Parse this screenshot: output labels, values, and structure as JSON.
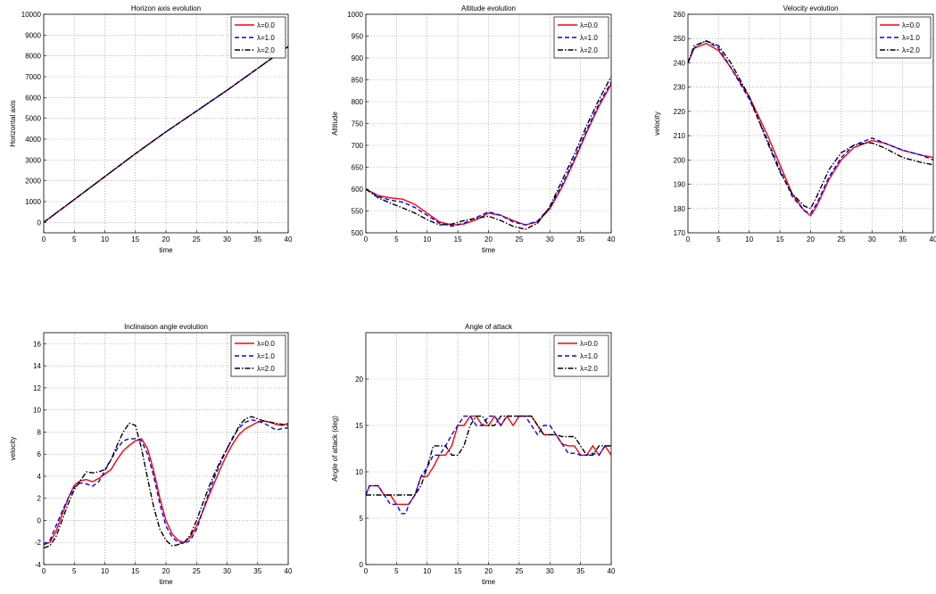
{
  "figure": {
    "background": "#ffffff",
    "series_colors": {
      "λ=0.0": "#ff0000",
      "λ=1.0": "#0000ff",
      "λ=2.0": "#000000"
    }
  },
  "chart_data": [
    {
      "type": "line",
      "title": "Horizon axis evolution",
      "xlabel": "time",
      "ylabel": "Horizontal axis",
      "xlim": [
        0,
        40
      ],
      "ylim": [
        -500,
        10000
      ],
      "xticks": [
        0,
        5,
        10,
        15,
        20,
        25,
        30,
        35,
        40
      ],
      "yticks": [
        0,
        1000,
        2000,
        3000,
        4000,
        5000,
        6000,
        7000,
        8000,
        9000,
        10000
      ],
      "grid": true,
      "legend_position": "top-right",
      "legend": [
        "λ=0.0",
        "λ=1.0",
        "λ=2.0"
      ],
      "series": [
        {
          "name": "λ=0.0",
          "color": "#ff0000",
          "style": "solid",
          "x": [
            0,
            5,
            10,
            15,
            20,
            25,
            30,
            35,
            40
          ],
          "y": [
            0,
            1100,
            2200,
            3300,
            4350,
            5350,
            6350,
            7400,
            8450
          ]
        },
        {
          "name": "λ=1.0",
          "color": "#0000ff",
          "style": "dashed",
          "x": [
            0,
            5,
            10,
            15,
            20,
            25,
            30,
            35,
            40
          ],
          "y": [
            0,
            1100,
            2200,
            3300,
            4350,
            5350,
            6350,
            7400,
            8450
          ]
        },
        {
          "name": "λ=2.0",
          "color": "#000000",
          "style": "dashdot",
          "x": [
            0,
            5,
            10,
            15,
            20,
            25,
            30,
            35,
            40
          ],
          "y": [
            0,
            1100,
            2200,
            3300,
            4350,
            5350,
            6350,
            7400,
            8450
          ]
        }
      ]
    },
    {
      "type": "line",
      "title": "Altitude evolution",
      "xlabel": "time",
      "ylabel": "Altitude",
      "xlim": [
        0,
        40
      ],
      "ylim": [
        500,
        1000
      ],
      "xticks": [
        0,
        5,
        10,
        15,
        20,
        25,
        30,
        35,
        40
      ],
      "yticks": [
        500,
        550,
        600,
        650,
        700,
        750,
        800,
        850,
        900,
        950,
        1000
      ],
      "grid": true,
      "legend_position": "top-right",
      "legend": [
        "λ=0.0",
        "λ=1.0",
        "λ=2.0"
      ],
      "series": [
        {
          "name": "λ=0.0",
          "color": "#ff0000",
          "style": "solid",
          "x": [
            0,
            2,
            4,
            6,
            8,
            10,
            12,
            14,
            16,
            18,
            20,
            22,
            24,
            26,
            28,
            30,
            32,
            34,
            36,
            38,
            40
          ],
          "y": [
            600,
            585,
            580,
            577,
            565,
            545,
            525,
            518,
            520,
            530,
            545,
            540,
            528,
            518,
            525,
            555,
            605,
            665,
            730,
            790,
            840
          ]
        },
        {
          "name": "λ=1.0",
          "color": "#0000ff",
          "style": "dashed",
          "x": [
            0,
            2,
            4,
            6,
            8,
            10,
            12,
            14,
            16,
            18,
            20,
            22,
            24,
            26,
            28,
            30,
            32,
            34,
            36,
            38,
            40
          ],
          "y": [
            600,
            583,
            575,
            570,
            558,
            540,
            522,
            515,
            522,
            535,
            548,
            540,
            525,
            518,
            527,
            558,
            610,
            670,
            735,
            795,
            845
          ]
        },
        {
          "name": "λ=2.0",
          "color": "#000000",
          "style": "dashdot",
          "x": [
            0,
            2,
            4,
            6,
            8,
            10,
            12,
            14,
            16,
            18,
            20,
            22,
            24,
            26,
            28,
            30,
            32,
            34,
            36,
            38,
            40
          ],
          "y": [
            600,
            580,
            568,
            557,
            545,
            530,
            518,
            520,
            528,
            533,
            538,
            528,
            515,
            508,
            522,
            560,
            620,
            680,
            745,
            805,
            858
          ]
        }
      ]
    },
    {
      "type": "line",
      "title": "Velocity evolution",
      "xlabel": "",
      "ylabel": "velocity",
      "xlim": [
        0,
        40
      ],
      "ylim": [
        170,
        260
      ],
      "xticks": [
        0,
        5,
        10,
        15,
        20,
        25,
        30,
        35,
        40
      ],
      "yticks": [
        170,
        180,
        190,
        200,
        210,
        220,
        230,
        240,
        250,
        260
      ],
      "grid": true,
      "legend_position": "top-right",
      "legend": [
        "λ=0.0",
        "λ=1.0",
        "λ=2.0"
      ],
      "series": [
        {
          "name": "λ=0.0",
          "color": "#ff0000",
          "style": "solid",
          "x": [
            0,
            1,
            2,
            3,
            5,
            7,
            10,
            13,
            15,
            17,
            19,
            20,
            21,
            23,
            25,
            27,
            29,
            30,
            32,
            35,
            38,
            40
          ],
          "y": [
            240,
            246,
            247,
            248,
            245,
            238,
            226,
            210,
            198,
            186,
            179,
            177,
            181,
            192,
            200,
            205,
            207,
            208,
            207,
            204,
            202,
            201
          ]
        },
        {
          "name": "λ=1.0",
          "color": "#0000ff",
          "style": "dashed",
          "x": [
            0,
            1,
            2,
            3,
            5,
            7,
            10,
            13,
            15,
            17,
            19,
            20,
            21,
            23,
            25,
            27,
            29,
            30,
            32,
            35,
            38,
            40
          ],
          "y": [
            240,
            246,
            248,
            249,
            246,
            238,
            225,
            208,
            196,
            185,
            179,
            178,
            182,
            193,
            201,
            206,
            208,
            209,
            207,
            204,
            202,
            200
          ]
        },
        {
          "name": "λ=2.0",
          "color": "#000000",
          "style": "dashdot",
          "x": [
            0,
            1,
            2,
            3,
            5,
            7,
            10,
            13,
            15,
            17,
            19,
            20,
            21,
            23,
            25,
            27,
            29,
            30,
            32,
            35,
            38,
            40
          ],
          "y": [
            240,
            247,
            248,
            249,
            247,
            240,
            226,
            207,
            195,
            186,
            181,
            180,
            185,
            196,
            203,
            206,
            207,
            207,
            205,
            201,
            199,
            198
          ]
        }
      ]
    },
    {
      "type": "line",
      "title": "Inclinaison angle evolution",
      "xlabel": "time",
      "ylabel": "velocity",
      "xlim": [
        0,
        40
      ],
      "ylim": [
        -4,
        17
      ],
      "xticks": [
        0,
        5,
        10,
        15,
        20,
        25,
        30,
        35,
        40
      ],
      "yticks": [
        -4,
        -2,
        0,
        2,
        4,
        6,
        8,
        10,
        12,
        14,
        16
      ],
      "grid": true,
      "legend_position": "top-right",
      "legend": [
        "λ=0.0",
        "λ=1.0",
        "λ=2.0"
      ],
      "series": [
        {
          "name": "λ=0.0",
          "color": "#ff0000",
          "style": "solid",
          "x": [
            0,
            1,
            2,
            3,
            4,
            5,
            6,
            7,
            8,
            9,
            10,
            11,
            12,
            13,
            14,
            15,
            16,
            17,
            18,
            19,
            20,
            21,
            22,
            23,
            24,
            25,
            26,
            27,
            28,
            29,
            30,
            31,
            32,
            33,
            34,
            35,
            36,
            37,
            38,
            39,
            40
          ],
          "y": [
            -2.2,
            -2.0,
            -1.0,
            0.5,
            2.0,
            3.2,
            3.6,
            3.7,
            3.5,
            3.8,
            4.2,
            4.6,
            5.5,
            6.3,
            6.8,
            7.2,
            7.4,
            6.5,
            4.5,
            2.0,
            0.0,
            -1.2,
            -1.8,
            -2.0,
            -1.5,
            -0.5,
            0.8,
            2.2,
            3.5,
            4.8,
            6.0,
            7.0,
            7.8,
            8.3,
            8.6,
            8.9,
            9.0,
            8.9,
            8.7,
            8.6,
            8.8
          ]
        },
        {
          "name": "λ=1.0",
          "color": "#0000ff",
          "style": "dashed",
          "x": [
            0,
            1,
            2,
            3,
            4,
            5,
            6,
            7,
            8,
            9,
            10,
            11,
            12,
            13,
            14,
            15,
            16,
            17,
            18,
            19,
            20,
            21,
            22,
            23,
            24,
            25,
            26,
            27,
            28,
            29,
            30,
            31,
            32,
            33,
            34,
            35,
            36,
            37,
            38,
            39,
            40
          ],
          "y": [
            -2.2,
            -1.8,
            -0.5,
            0.8,
            2.0,
            3.0,
            3.4,
            3.3,
            3.1,
            3.5,
            4.5,
            5.5,
            6.5,
            7.2,
            7.4,
            7.4,
            7.2,
            6.0,
            4.0,
            1.5,
            -0.5,
            -1.5,
            -2.0,
            -2.1,
            -1.8,
            -0.8,
            0.8,
            2.5,
            4.0,
            5.3,
            6.5,
            7.6,
            8.4,
            8.9,
            9.1,
            9.0,
            8.8,
            8.5,
            8.2,
            8.3,
            8.4
          ]
        },
        {
          "name": "λ=2.0",
          "color": "#000000",
          "style": "dashdot",
          "x": [
            0,
            1,
            2,
            3,
            4,
            5,
            6,
            7,
            8,
            9,
            10,
            11,
            12,
            13,
            14,
            15,
            16,
            17,
            18,
            19,
            20,
            21,
            22,
            23,
            24,
            25,
            26,
            27,
            28,
            29,
            30,
            31,
            32,
            33,
            34,
            35,
            36,
            37,
            38,
            39,
            40
          ],
          "y": [
            -2.5,
            -2.3,
            -1.5,
            0.0,
            1.5,
            2.8,
            3.6,
            4.4,
            4.3,
            4.4,
            4.6,
            5.5,
            6.8,
            8.0,
            8.8,
            8.6,
            6.5,
            3.8,
            1.2,
            -0.8,
            -1.8,
            -2.3,
            -2.2,
            -2.0,
            -1.3,
            0.0,
            1.5,
            3.0,
            4.3,
            5.5,
            6.5,
            7.5,
            8.6,
            9.2,
            9.4,
            9.2,
            9.0,
            8.9,
            8.8,
            8.7,
            8.6
          ]
        }
      ]
    },
    {
      "type": "line",
      "title": "Angle of attack",
      "xlabel": "time",
      "ylabel": "Angle of attack (deg)",
      "xlim": [
        0,
        40
      ],
      "ylim": [
        0,
        25
      ],
      "xticks": [
        0,
        5,
        10,
        15,
        20,
        25,
        30,
        35,
        40
      ],
      "yticks": [
        0,
        5,
        10,
        15,
        20
      ],
      "grid": true,
      "legend_position": "top-right",
      "legend": [
        "λ=0.0",
        "λ=1.0",
        "λ=2.0"
      ],
      "series": [
        {
          "name": "λ=0.0",
          "color": "#ff0000",
          "style": "solid",
          "x": [
            0,
            0.6,
            1,
            2,
            3,
            4,
            5,
            6,
            7,
            8,
            9,
            10,
            11,
            12,
            13,
            14,
            15,
            16,
            17,
            18,
            19,
            20,
            21,
            22,
            23,
            24,
            25,
            26,
            27,
            28,
            29,
            30,
            31,
            32,
            33,
            34,
            35,
            36,
            37,
            38,
            39,
            40
          ],
          "y": [
            7.5,
            8.5,
            8.5,
            8.5,
            7.5,
            7.5,
            6.5,
            6.5,
            6.5,
            7.5,
            9.5,
            9.5,
            10.5,
            11.8,
            11.8,
            12.8,
            15.0,
            15.0,
            16.0,
            16.0,
            15.0,
            15.0,
            16.0,
            15.0,
            16.0,
            15.0,
            16.0,
            16.0,
            16.0,
            15.0,
            14.0,
            14.0,
            14.0,
            13.0,
            12.8,
            12.8,
            11.8,
            11.8,
            12.8,
            11.8,
            12.8,
            11.8
          ]
        },
        {
          "name": "λ=1.0",
          "color": "#0000ff",
          "style": "dashed",
          "x": [
            0,
            0.6,
            1,
            2,
            3,
            4,
            5,
            5.8,
            6.5,
            7,
            8,
            9,
            10,
            11,
            12,
            13,
            14,
            15,
            16,
            17,
            18,
            19,
            20,
            21,
            22,
            23,
            24,
            25,
            26,
            27,
            28,
            29,
            30,
            31,
            32,
            33,
            34,
            35,
            36,
            37,
            38,
            39,
            40
          ],
          "y": [
            7.5,
            8.5,
            8.5,
            8.5,
            7.5,
            6.5,
            6.5,
            5.5,
            5.5,
            6.5,
            7.5,
            9.5,
            10.5,
            11.8,
            11.8,
            12.8,
            14.0,
            15.0,
            16.0,
            16.0,
            15.0,
            15.0,
            16.0,
            16.0,
            15.0,
            16.0,
            16.0,
            16.0,
            16.0,
            15.0,
            14.0,
            15.0,
            15.0,
            14.0,
            13.0,
            12.0,
            12.0,
            11.8,
            11.8,
            12.0,
            11.8,
            12.8,
            12.8
          ]
        },
        {
          "name": "λ=2.0",
          "color": "#000000",
          "style": "dashdot",
          "x": [
            0,
            1,
            2,
            3,
            4,
            5,
            6,
            7,
            8,
            9,
            10,
            11,
            12,
            13,
            14,
            15,
            16,
            17,
            18,
            19,
            20,
            21,
            22,
            23,
            24,
            25,
            26,
            27,
            28,
            29,
            30,
            31,
            32,
            33,
            34,
            35,
            36,
            37,
            38,
            39,
            40
          ],
          "y": [
            7.5,
            7.5,
            7.5,
            7.5,
            7.5,
            7.5,
            7.5,
            7.5,
            7.5,
            8.5,
            10.5,
            12.8,
            12.8,
            12.8,
            11.8,
            11.8,
            12.8,
            15.0,
            16.0,
            16.0,
            15.0,
            15.0,
            16.0,
            16.0,
            16.0,
            16.0,
            16.0,
            16.0,
            15.0,
            14.0,
            14.0,
            14.0,
            13.8,
            13.8,
            13.8,
            12.8,
            11.8,
            11.8,
            12.8,
            12.8,
            12.8
          ]
        }
      ]
    }
  ]
}
